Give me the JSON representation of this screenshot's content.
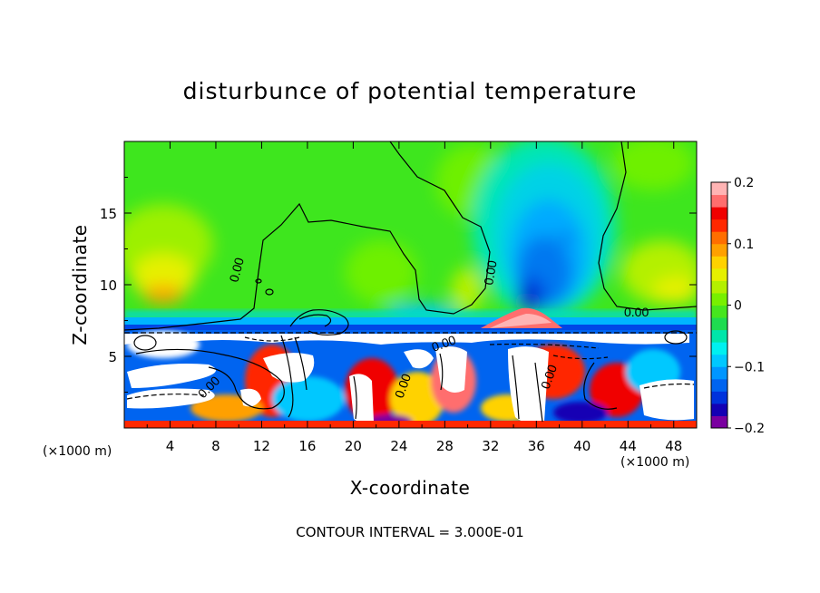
{
  "chart_data": {
    "type": "heatmap",
    "title": "disturbunce of potential temperature",
    "xlabel": "X-coordinate",
    "ylabel": "Z-coordinate",
    "x_unit_label": "(×1000 m)",
    "x_ticks": [
      "4",
      "8",
      "12",
      "16",
      "20",
      "24",
      "28",
      "32",
      "36",
      "40",
      "44",
      "48"
    ],
    "x_tick_values": [
      4,
      8,
      12,
      16,
      20,
      24,
      28,
      32,
      36,
      40,
      44,
      48
    ],
    "xlim": [
      0,
      50
    ],
    "y_ticks": [
      "5",
      "10",
      "15"
    ],
    "y_tick_values": [
      5,
      10,
      15
    ],
    "ylim": [
      0,
      20
    ],
    "colorbar": {
      "ticks": [
        "0.2",
        "0.1",
        "0",
        "−0.1",
        "−0.2"
      ],
      "tick_values": [
        0.2,
        0.1,
        0,
        -0.1,
        -0.2
      ],
      "range": [
        -0.2,
        0.2
      ],
      "colors": [
        "#7a00a0",
        "#1400b4",
        "#0032dc",
        "#0064f0",
        "#0096ff",
        "#00c8ff",
        "#00f0f0",
        "#00e6aa",
        "#1edc50",
        "#46e61e",
        "#78f000",
        "#b4f000",
        "#e6f000",
        "#ffd200",
        "#ffa000",
        "#ff6e00",
        "#ff2800",
        "#f00000",
        "#ff6e6e",
        "#ffb4b4"
      ]
    },
    "contour_labels": [
      "0.00",
      "0.00",
      "0.00",
      "0.00",
      "0.00",
      "0.00",
      "0.00"
    ],
    "contour_interval_text": "CONTOUR INTERVAL = 3.000E-01"
  }
}
